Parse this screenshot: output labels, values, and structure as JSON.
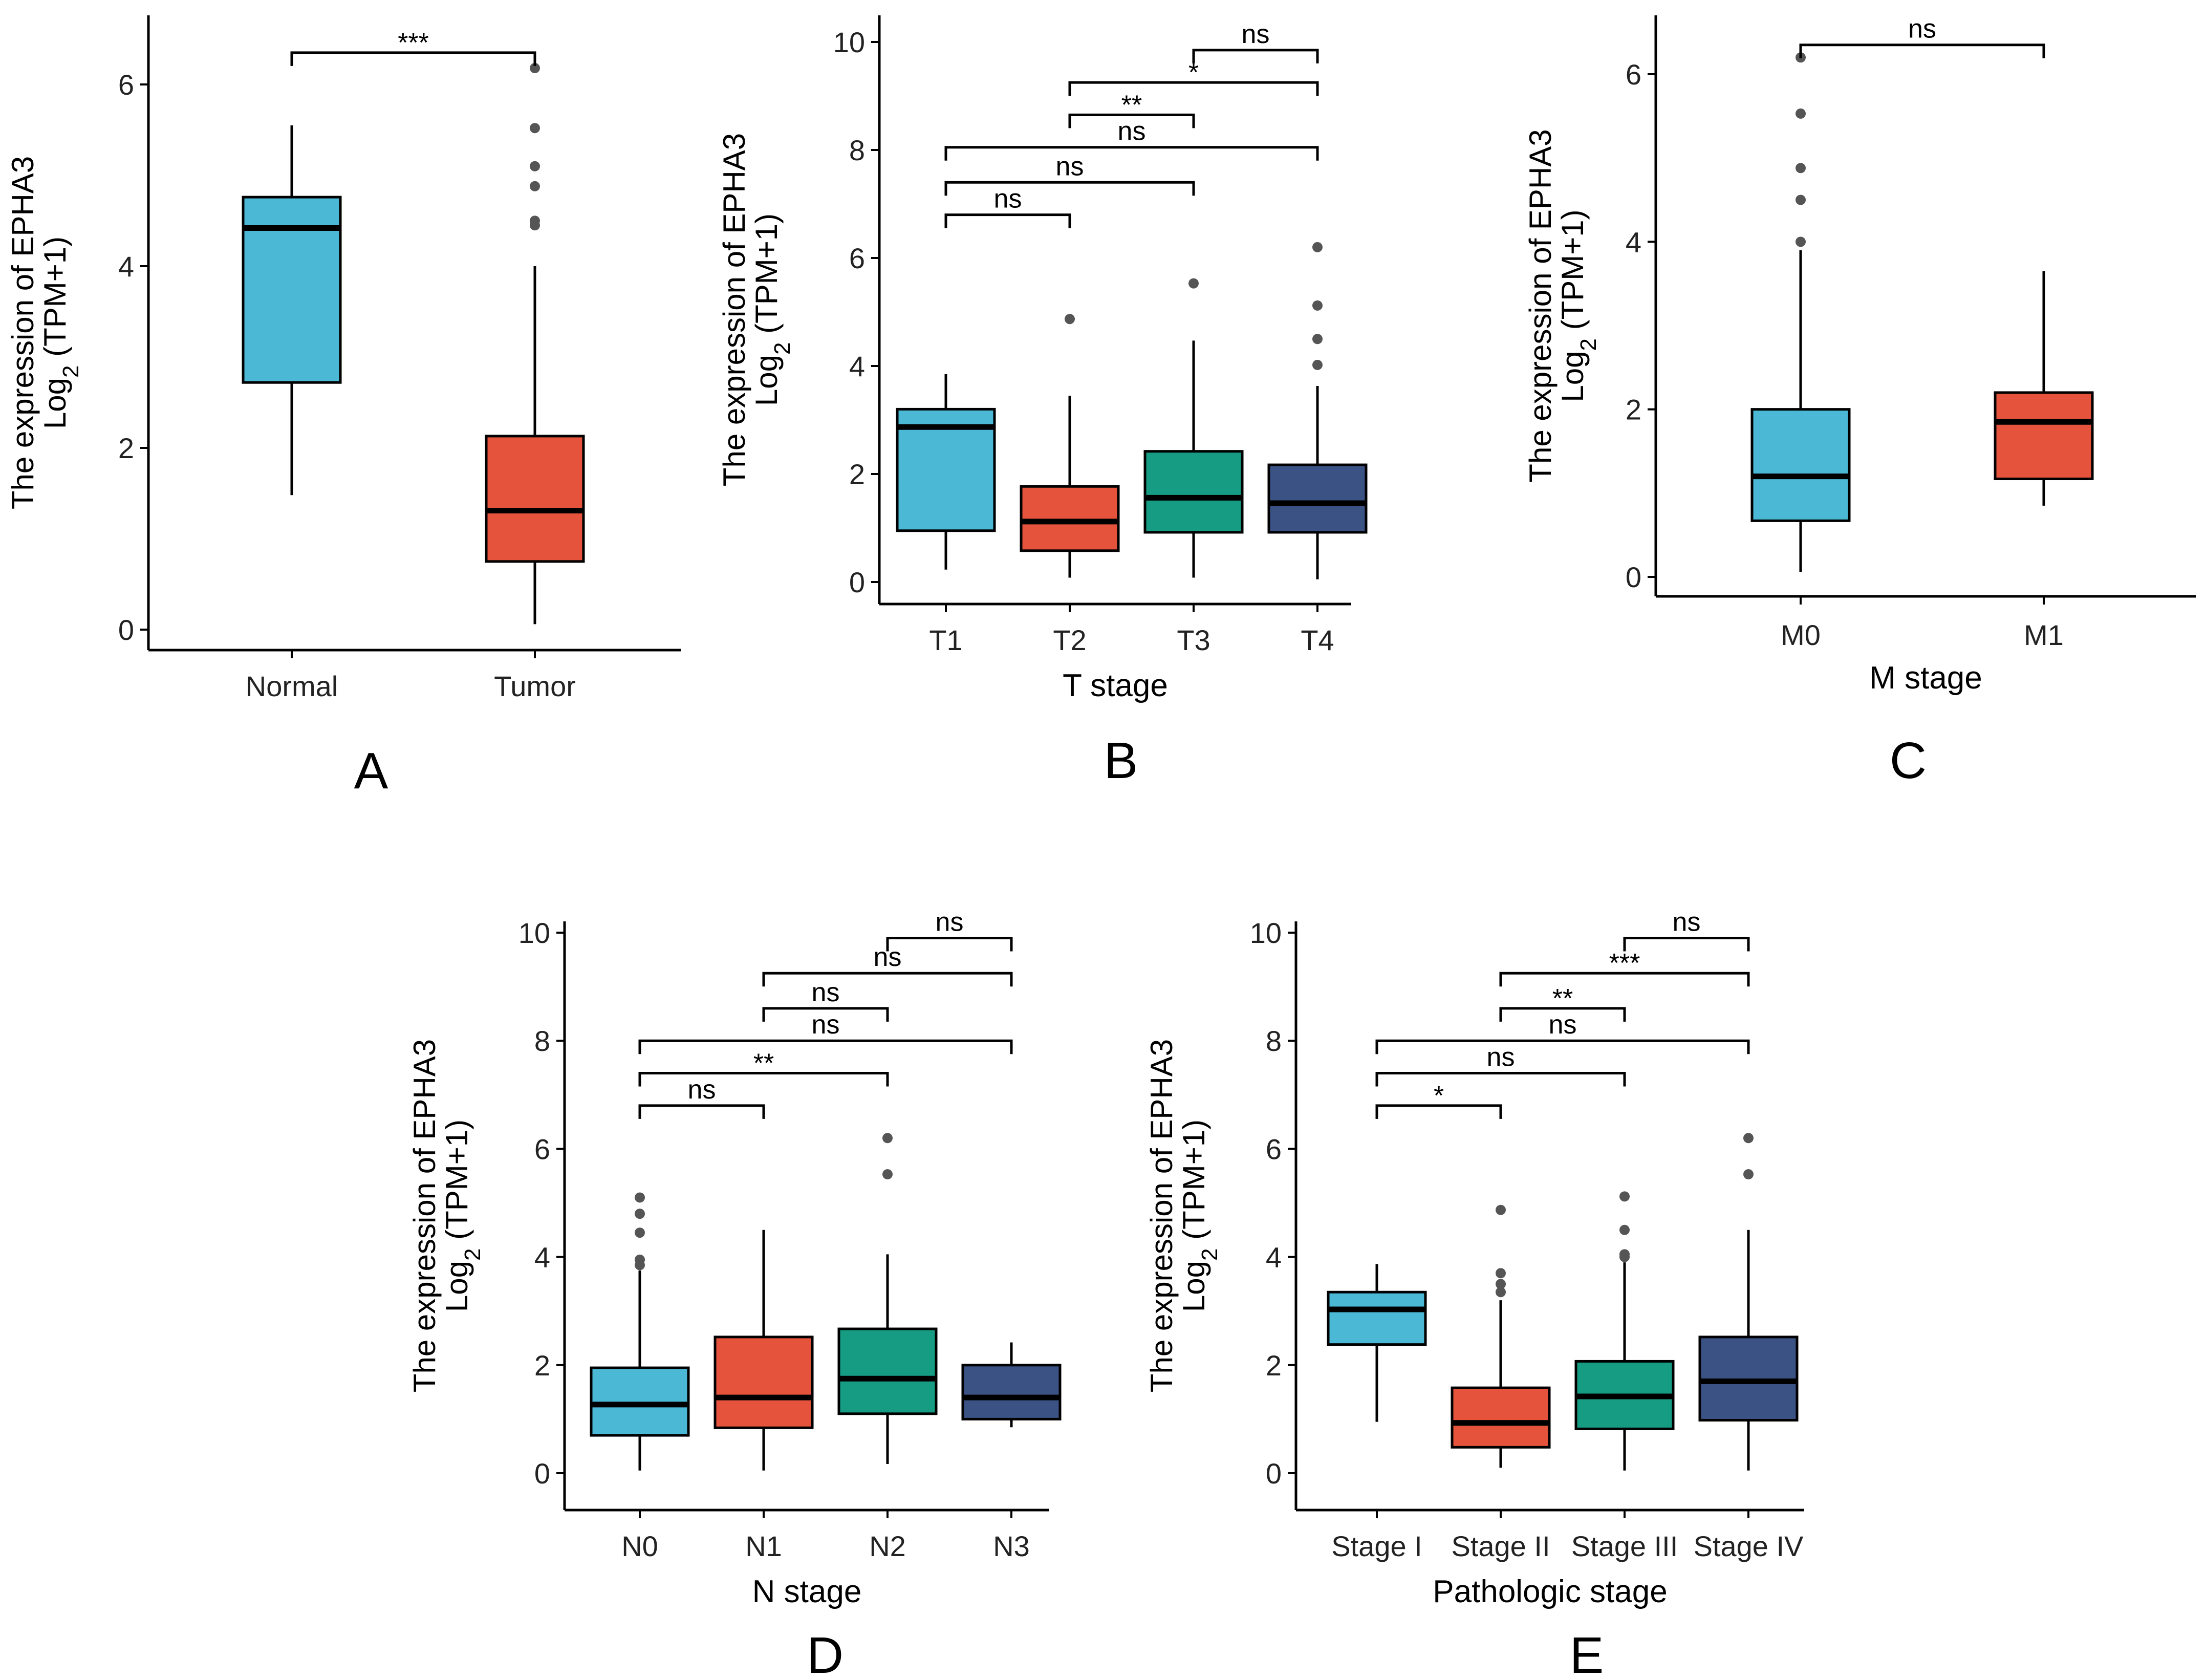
{
  "colors": {
    "axis": "#000000",
    "outlier": "#555555",
    "palette": [
      "#4bb9d6",
      "#e6533c",
      "#169c82",
      "#3b5285"
    ]
  },
  "chart_data": [
    {
      "type": "box",
      "panel": "A",
      "xlabel": "",
      "ylabel": [
        "The expression of EPHA3",
        "Log",
        "2",
        " (TPM+1)"
      ],
      "ylim": [
        0,
        6.5
      ],
      "yticks": [
        0,
        2,
        4,
        6
      ],
      "categories": [
        "Normal",
        "Tumor"
      ],
      "boxes": [
        {
          "whisker_low": 1.48,
          "q1": 2.72,
          "median": 4.42,
          "q3": 4.76,
          "whisker_high": 5.55,
          "outliers": []
        },
        {
          "whisker_low": 0.06,
          "q1": 0.75,
          "median": 1.31,
          "q3": 2.13,
          "whisker_high": 4.0,
          "outliers": [
            4.45,
            4.5,
            4.88,
            5.1,
            5.52,
            6.18
          ]
        }
      ],
      "significance": [
        {
          "from": 0,
          "to": 1,
          "y": 6.35,
          "label": "***"
        }
      ]
    },
    {
      "type": "box",
      "panel": "B",
      "xlabel": "T stage",
      "ylabel": [
        "The expression of EPHA3",
        "Log",
        "2",
        " (TPM+1)"
      ],
      "ylim": [
        -0.4,
        10.4
      ],
      "yticks": [
        0,
        2,
        4,
        6,
        8,
        10
      ],
      "categories": [
        "T1",
        "T2",
        "T3",
        "T4"
      ],
      "boxes": [
        {
          "whisker_low": 0.23,
          "q1": 0.95,
          "median": 2.87,
          "q3": 3.2,
          "whisker_high": 3.85,
          "outliers": []
        },
        {
          "whisker_low": 0.08,
          "q1": 0.58,
          "median": 1.12,
          "q3": 1.77,
          "whisker_high": 3.45,
          "outliers": [
            4.87
          ]
        },
        {
          "whisker_low": 0.08,
          "q1": 0.92,
          "median": 1.56,
          "q3": 2.42,
          "whisker_high": 4.47,
          "outliers": [
            5.53
          ]
        },
        {
          "whisker_low": 0.05,
          "q1": 0.92,
          "median": 1.46,
          "q3": 2.17,
          "whisker_high": 3.63,
          "outliers": [
            4.02,
            4.5,
            5.12,
            6.2
          ]
        }
      ],
      "significance": [
        {
          "from": 0,
          "to": 1,
          "y": 6.8,
          "label": "ns"
        },
        {
          "from": 0,
          "to": 2,
          "y": 7.4,
          "label": "ns"
        },
        {
          "from": 0,
          "to": 3,
          "y": 8.05,
          "label": "ns"
        },
        {
          "from": 1,
          "to": 2,
          "y": 8.65,
          "label": "**"
        },
        {
          "from": 1,
          "to": 3,
          "y": 9.25,
          "label": "*"
        },
        {
          "from": 2,
          "to": 3,
          "y": 9.85,
          "label": "ns"
        }
      ]
    },
    {
      "type": "box",
      "panel": "C",
      "xlabel": "M stage",
      "ylabel": [
        "The expression of EPHA3",
        "Log",
        "2",
        " (TPM+1)"
      ],
      "ylim": [
        -0.2,
        6.6
      ],
      "yticks": [
        0,
        2,
        4,
        6
      ],
      "categories": [
        "M0",
        "M1"
      ],
      "boxes": [
        {
          "whisker_low": 0.06,
          "q1": 0.67,
          "median": 1.2,
          "q3": 2.0,
          "whisker_high": 3.9,
          "outliers": [
            4.0,
            4.5,
            4.88,
            5.53,
            6.2
          ]
        },
        {
          "whisker_low": 0.85,
          "q1": 1.17,
          "median": 1.85,
          "q3": 2.2,
          "whisker_high": 3.65,
          "outliers": []
        }
      ],
      "significance": [
        {
          "from": 0,
          "to": 1,
          "y": 6.35,
          "label": "ns"
        }
      ]
    },
    {
      "type": "box",
      "panel": "D",
      "xlabel": "N stage",
      "ylabel": [
        "The expression of EPHA3",
        "Log",
        "2",
        " (TPM+1)"
      ],
      "ylim": [
        -0.4,
        10.4
      ],
      "yticks": [
        0,
        2,
        4,
        6,
        8,
        10
      ],
      "categories": [
        "N0",
        "N1",
        "N2",
        "N3"
      ],
      "boxes": [
        {
          "whisker_low": 0.05,
          "q1": 0.7,
          "median": 1.27,
          "q3": 1.95,
          "whisker_high": 3.75,
          "outliers": [
            3.85,
            3.95,
            4.45,
            4.8,
            5.1
          ]
        },
        {
          "whisker_low": 0.05,
          "q1": 0.84,
          "median": 1.4,
          "q3": 2.52,
          "whisker_high": 4.5,
          "outliers": []
        },
        {
          "whisker_low": 0.17,
          "q1": 1.1,
          "median": 1.75,
          "q3": 2.67,
          "whisker_high": 4.05,
          "outliers": [
            5.53,
            6.2
          ]
        },
        {
          "whisker_low": 0.85,
          "q1": 1.0,
          "median": 1.4,
          "q3": 2.0,
          "whisker_high": 2.42,
          "outliers": []
        }
      ],
      "significance": [
        {
          "from": 0,
          "to": 1,
          "y": 6.8,
          "label": "ns"
        },
        {
          "from": 0,
          "to": 2,
          "y": 7.4,
          "label": "**"
        },
        {
          "from": 0,
          "to": 3,
          "y": 8.0,
          "label": "ns"
        },
        {
          "from": 1,
          "to": 2,
          "y": 8.6,
          "label": "ns"
        },
        {
          "from": 1,
          "to": 3,
          "y": 9.25,
          "label": "ns"
        },
        {
          "from": 2,
          "to": 3,
          "y": 9.9,
          "label": "ns"
        }
      ]
    },
    {
      "type": "box",
      "panel": "E",
      "xlabel": "Pathologic stage",
      "ylabel": [
        "The expression of EPHA3",
        "Log",
        "2",
        " (TPM+1)"
      ],
      "ylim": [
        -0.4,
        10.4
      ],
      "yticks": [
        0,
        2,
        4,
        6,
        8,
        10
      ],
      "categories": [
        "Stage I",
        "Stage II",
        "Stage III",
        "Stage IV"
      ],
      "boxes": [
        {
          "whisker_low": 0.95,
          "q1": 2.38,
          "median": 3.03,
          "q3": 3.35,
          "whisker_high": 3.87,
          "outliers": []
        },
        {
          "whisker_low": 0.1,
          "q1": 0.48,
          "median": 0.93,
          "q3": 1.58,
          "whisker_high": 3.2,
          "outliers": [
            3.35,
            3.5,
            3.7,
            4.87
          ]
        },
        {
          "whisker_low": 0.05,
          "q1": 0.82,
          "median": 1.42,
          "q3": 2.07,
          "whisker_high": 3.9,
          "outliers": [
            4.0,
            4.05,
            4.5,
            5.12
          ]
        },
        {
          "whisker_low": 0.05,
          "q1": 0.98,
          "median": 1.7,
          "q3": 2.52,
          "whisker_high": 4.5,
          "outliers": [
            5.53,
            6.2
          ]
        }
      ],
      "significance": [
        {
          "from": 0,
          "to": 1,
          "y": 6.8,
          "label": "*"
        },
        {
          "from": 0,
          "to": 2,
          "y": 7.4,
          "label": "ns"
        },
        {
          "from": 0,
          "to": 3,
          "y": 8.0,
          "label": "ns"
        },
        {
          "from": 1,
          "to": 2,
          "y": 8.6,
          "label": "**"
        },
        {
          "from": 1,
          "to": 3,
          "y": 9.25,
          "label": "***"
        },
        {
          "from": 2,
          "to": 3,
          "y": 9.9,
          "label": "ns"
        }
      ]
    }
  ]
}
